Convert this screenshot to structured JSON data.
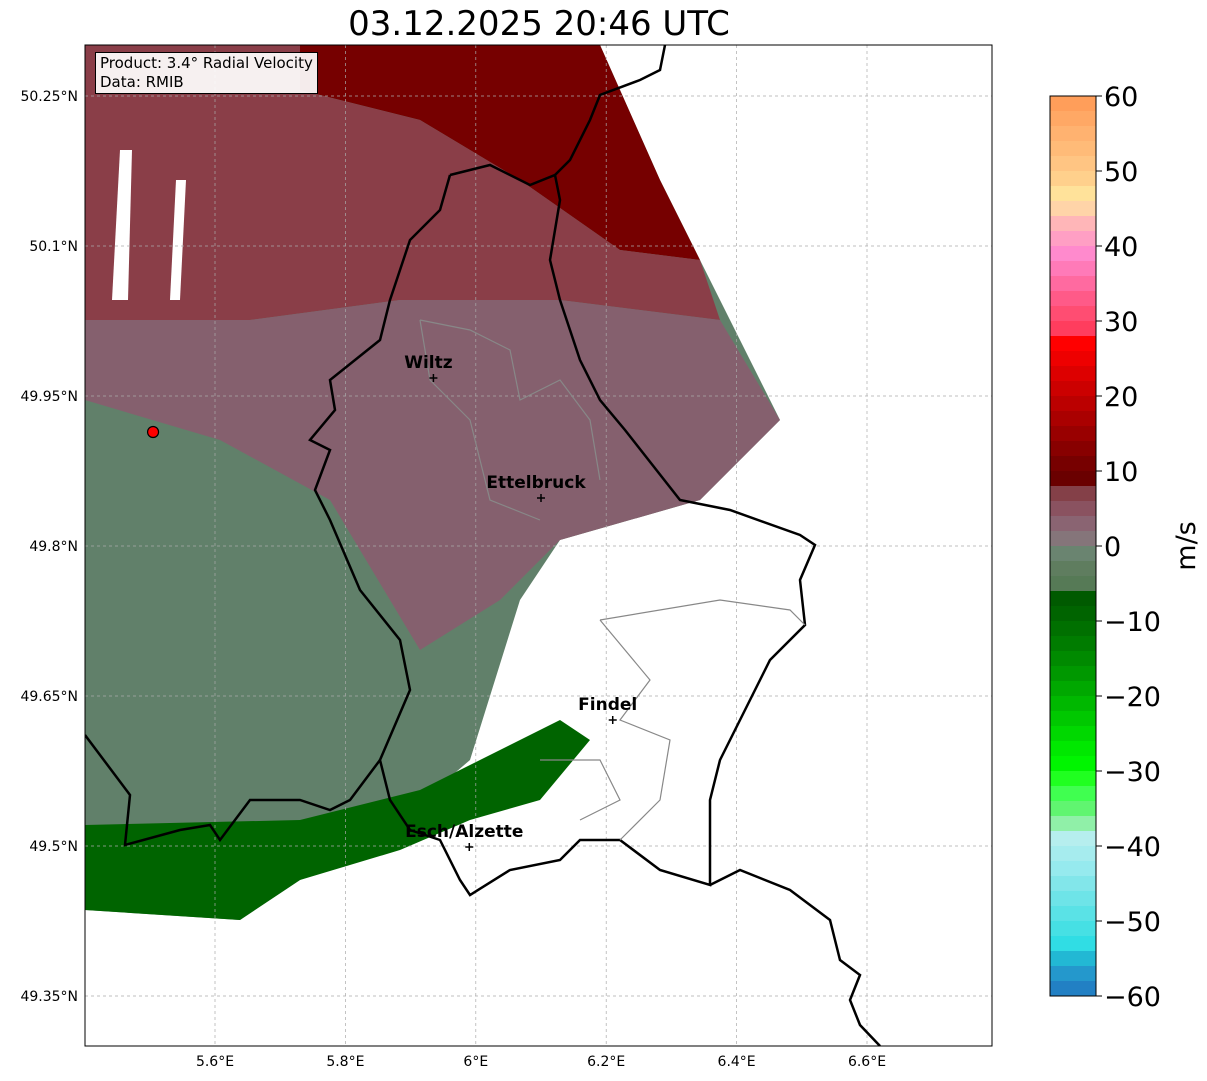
{
  "title": "03.12.2025 20:46 UTC",
  "infobox": {
    "product": "Product: 3.4° Radial Velocity",
    "data": "Data: RMIB"
  },
  "lon_ticks": [
    {
      "v": 5.6,
      "label": "5.6°E"
    },
    {
      "v": 5.8,
      "label": "5.8°E"
    },
    {
      "v": 6.0,
      "label": "6°E"
    },
    {
      "v": 6.2,
      "label": "6.2°E"
    },
    {
      "v": 6.4,
      "label": "6.4°E"
    },
    {
      "v": 6.6,
      "label": "6.6°E"
    }
  ],
  "lat_ticks": [
    {
      "v": 50.25,
      "label": "50.25°N"
    },
    {
      "v": 50.1,
      "label": "50.1°N"
    },
    {
      "v": 49.95,
      "label": "49.95°N"
    },
    {
      "v": 49.8,
      "label": "49.8°N"
    },
    {
      "v": 49.65,
      "label": "49.65°N"
    },
    {
      "v": 49.5,
      "label": "49.5°N"
    },
    {
      "v": 49.35,
      "label": "49.35°N"
    }
  ],
  "cities": [
    {
      "name": "Wiltz",
      "lon": 5.935,
      "lat": 49.968
    },
    {
      "name": "Ettelbruck",
      "lon": 6.1,
      "lat": 49.848
    },
    {
      "name": "Findel",
      "lon": 6.21,
      "lat": 49.626
    },
    {
      "name": "Esch/Alzette",
      "lon": 5.99,
      "lat": 49.499
    }
  ],
  "radar_site": {
    "lon": 5.505,
    "lat": 49.914
  },
  "colorbar": {
    "label": "m/s",
    "min": -60,
    "max": 60,
    "ticks": [
      "60",
      "50",
      "40",
      "30",
      "20",
      "10",
      "0",
      "−10",
      "−20",
      "−30",
      "−40",
      "−50",
      "−60"
    ],
    "colors_top_to_bottom": [
      "#ff9e5a",
      "#ffa865",
      "#ffb270",
      "#ffbb78",
      "#ffc583",
      "#ffd08c",
      "#ffe29a",
      "#ffd4a8",
      "#ffb6b8",
      "#ff9fc4",
      "#ff8acd",
      "#ff7ab8",
      "#ff6aa0",
      "#ff5a88",
      "#ff4d72",
      "#ff3d5e",
      "#ff0000",
      "#ee0000",
      "#dd0000",
      "#cc0000",
      "#bb0000",
      "#aa0000",
      "#990000",
      "#880000",
      "#770000",
      "#6a0000",
      "#844048",
      "#8a5260",
      "#8a6472",
      "#85757a",
      "#6a8470",
      "#5f7d5f",
      "#567a56",
      "#005a00",
      "#006400",
      "#007000",
      "#007c00",
      "#008a00",
      "#009800",
      "#00a800",
      "#00b800",
      "#00c800",
      "#00d800",
      "#00e800",
      "#00f500",
      "#20ff20",
      "#40ff50",
      "#60f570",
      "#90f0a8",
      "#b6eeee",
      "#a6ecee",
      "#96eaee",
      "#82e6ea",
      "#6ee4e8",
      "#5ae2e6",
      "#46e0e4",
      "#30dde4",
      "#22b8d4",
      "#2498cc",
      "#2280c4"
    ]
  },
  "field_colors": {
    "dark_red": "#760000",
    "maroon": "#8a3e48",
    "mauve": "#85606e",
    "grey_green": "#61806a",
    "dark_green": "#006400"
  }
}
